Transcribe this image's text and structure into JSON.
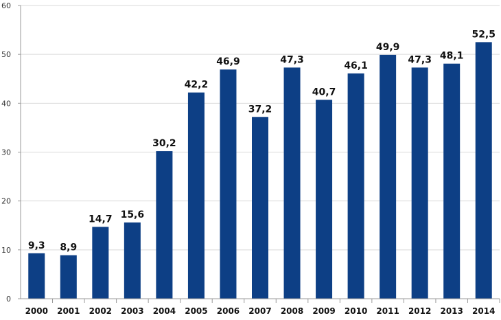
{
  "chart_data": {
    "type": "bar",
    "categories": [
      "2000",
      "2001",
      "2002",
      "2003",
      "2004",
      "2005",
      "2006",
      "2007",
      "2008",
      "2009",
      "2010",
      "2011",
      "2012",
      "2013",
      "2014"
    ],
    "values": [
      9.3,
      8.9,
      14.7,
      15.6,
      30.2,
      42.2,
      46.9,
      37.2,
      47.3,
      40.7,
      46.1,
      49.9,
      47.3,
      48.1,
      52.5
    ],
    "value_labels": [
      "9,3",
      "8,9",
      "14,7",
      "15,6",
      "30,2",
      "42,2",
      "46,9",
      "37,2",
      "47,3",
      "40,7",
      "46,1",
      "49,9",
      "47,3",
      "48,1",
      "52,5"
    ],
    "yticks": [
      "0",
      "10",
      "20",
      "30",
      "40",
      "50",
      "60"
    ],
    "ylim": [
      0,
      60
    ],
    "grid": true,
    "bar_color": "#0d3f85",
    "title": "",
    "xlabel": "",
    "ylabel": ""
  }
}
